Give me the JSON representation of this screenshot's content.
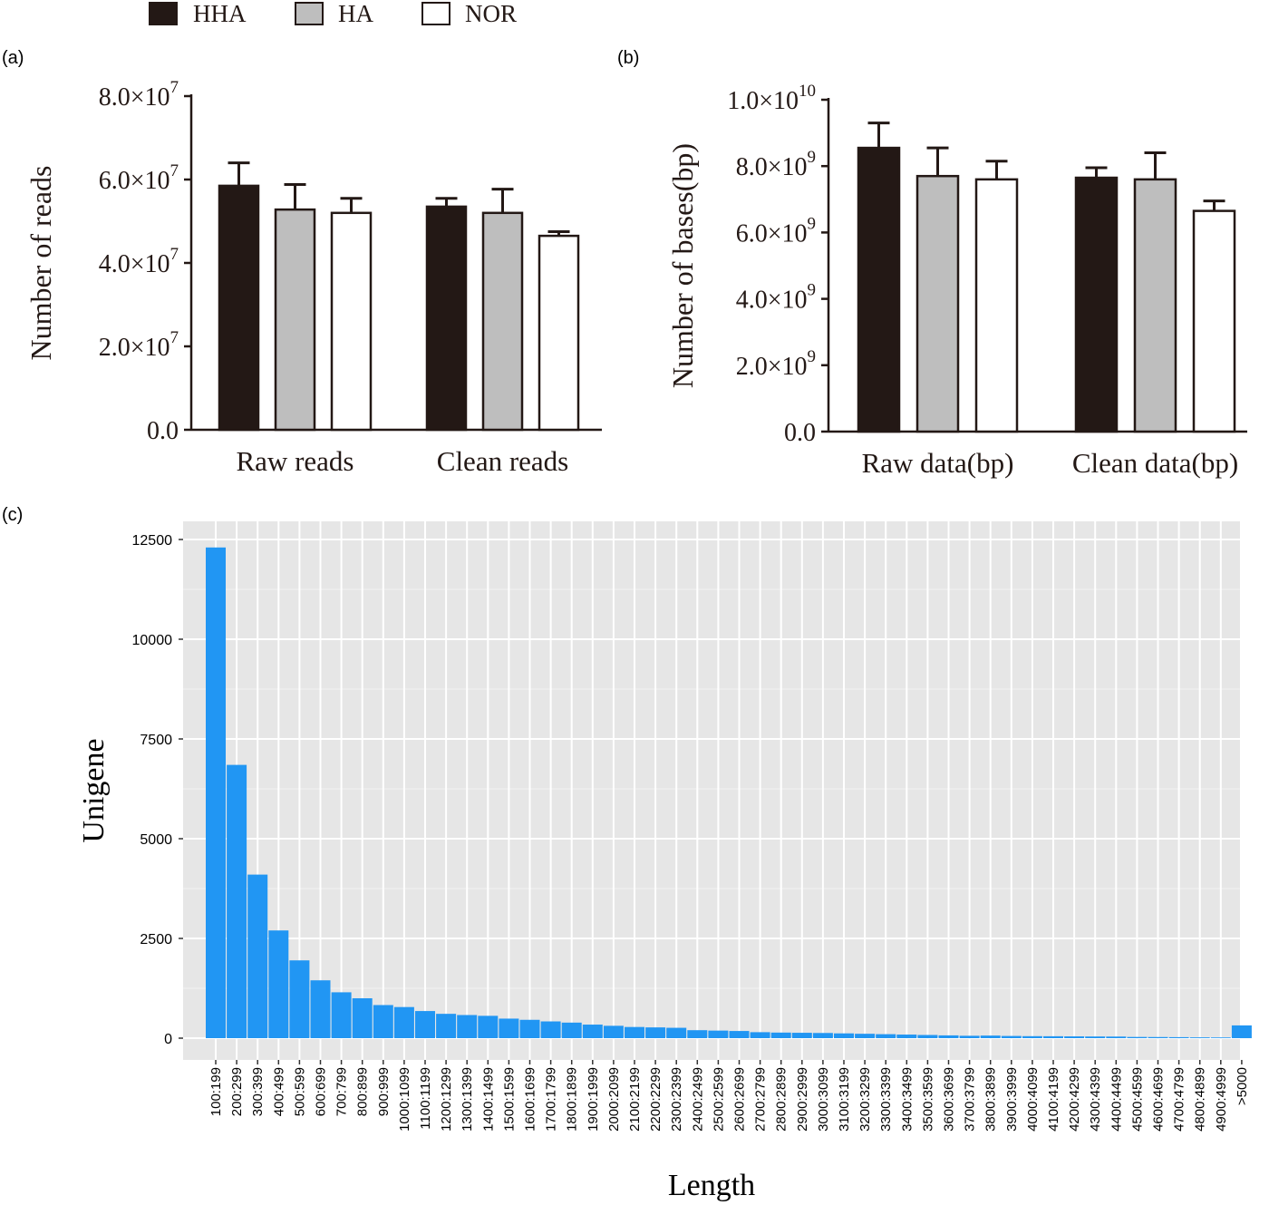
{
  "legend": [
    {
      "label": "HHA",
      "color": "#231815"
    },
    {
      "label": "HA",
      "color": "#bebebe"
    },
    {
      "label": "NOR",
      "color": "#ffffff"
    }
  ],
  "chart_data": [
    {
      "panel": "(a)",
      "type": "bar",
      "ylabel": "Number of reads",
      "categories": [
        "Raw reads",
        "Clean reads"
      ],
      "series": [
        {
          "name": "HHA",
          "values": [
            58500000,
            53500000
          ],
          "errors": [
            5500000,
            2000000
          ]
        },
        {
          "name": "HA",
          "values": [
            52800000,
            52000000
          ],
          "errors": [
            6000000,
            5700000
          ]
        },
        {
          "name": "NOR",
          "values": [
            52000000,
            46500000
          ],
          "errors": [
            3500000,
            1000000
          ]
        }
      ],
      "ylim": [
        0,
        80000000
      ],
      "yticks": [
        {
          "mantissa": "0.0",
          "exp": ""
        },
        {
          "mantissa": "2.0×10",
          "exp": "7"
        },
        {
          "mantissa": "4.0×10",
          "exp": "7"
        },
        {
          "mantissa": "6.0×10",
          "exp": "7"
        },
        {
          "mantissa": "8.0×10",
          "exp": "7"
        }
      ]
    },
    {
      "panel": "(b)",
      "type": "bar",
      "ylabel": "Number of bases(bp)",
      "categories": [
        "Raw data(bp)",
        "Clean data(bp)"
      ],
      "series": [
        {
          "name": "HHA",
          "values": [
            8550000000,
            7650000000
          ],
          "errors": [
            750000000,
            300000000
          ]
        },
        {
          "name": "HA",
          "values": [
            7700000000,
            7600000000
          ],
          "errors": [
            850000000,
            800000000
          ]
        },
        {
          "name": "NOR",
          "values": [
            7600000000,
            6650000000
          ],
          "errors": [
            550000000,
            300000000
          ]
        }
      ],
      "ylim": [
        0,
        10000000000
      ],
      "yticks": [
        {
          "mantissa": "0.0",
          "exp": ""
        },
        {
          "mantissa": "2.0×10",
          "exp": "9"
        },
        {
          "mantissa": "4.0×10",
          "exp": "9"
        },
        {
          "mantissa": "6.0×10",
          "exp": "9"
        },
        {
          "mantissa": "8.0×10",
          "exp": "9"
        },
        {
          "mantissa": "1.0×10",
          "exp": "10"
        }
      ]
    },
    {
      "panel": "(c)",
      "type": "bar",
      "xlabel": "Length",
      "ylabel": "Unigene",
      "color": "#2196f3",
      "ylim": [
        0,
        12500
      ],
      "yticks": [
        0,
        2500,
        5000,
        7500,
        10000,
        12500
      ],
      "categories": [
        "100:199",
        "200:299",
        "300:399",
        "400:499",
        "500:599",
        "600:699",
        "700:799",
        "800:899",
        "900:999",
        "1000:1099",
        "1100:1199",
        "1200:1299",
        "1300:1399",
        "1400:1499",
        "1500:1599",
        "1600:1699",
        "1700:1799",
        "1800:1899",
        "1900:1999",
        "2000:2099",
        "2100:2199",
        "2200:2299",
        "2300:2399",
        "2400:2499",
        "2500:2599",
        "2600:2699",
        "2700:2799",
        "2800:2899",
        "2900:2999",
        "3000:3099",
        "3100:3199",
        "3200:3299",
        "3300:3399",
        "3400:3499",
        "3500:3599",
        "3600:3699",
        "3700:3799",
        "3800:3899",
        "3900:3999",
        "4000:4099",
        "4100:4199",
        "4200:4299",
        "4300:4399",
        "4400:4499",
        "4500:4599",
        "4600:4699",
        "4700:4799",
        "4800:4899",
        "4900:4999",
        ">5000"
      ],
      "values": [
        12300,
        6850,
        4100,
        2700,
        1950,
        1450,
        1150,
        1000,
        830,
        780,
        680,
        610,
        580,
        560,
        490,
        460,
        420,
        390,
        340,
        310,
        280,
        270,
        260,
        200,
        190,
        180,
        150,
        140,
        135,
        130,
        120,
        110,
        100,
        90,
        80,
        70,
        60,
        65,
        55,
        50,
        48,
        45,
        42,
        40,
        30,
        28,
        25,
        20,
        18,
        320
      ]
    }
  ]
}
